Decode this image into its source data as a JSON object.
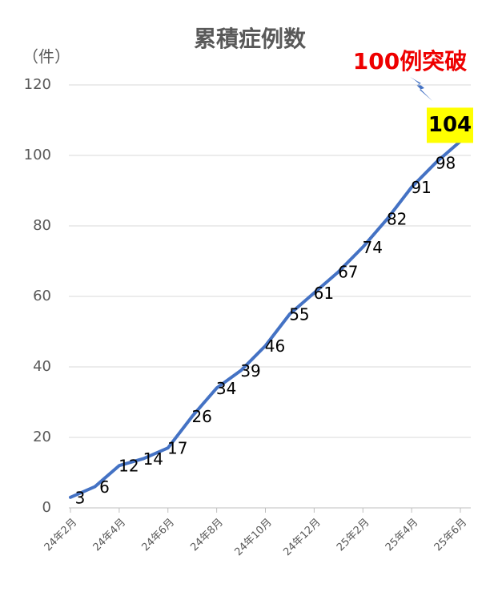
{
  "chart_data": {
    "type": "line",
    "title": "累積症例数",
    "y_label": "（件）",
    "annotation": "100例突破",
    "categories": [
      "24年2月",
      null,
      "24年4月",
      null,
      "24年6月",
      null,
      "24年8月",
      null,
      "24年10月",
      null,
      "24年12月",
      null,
      "25年2月",
      null,
      "25年4月",
      null,
      "25年6月"
    ],
    "series": [
      {
        "name": "累積症例数",
        "color": "#4472c4",
        "values": [
          3,
          6,
          12,
          14,
          17,
          26,
          34,
          39,
          46,
          55,
          61,
          67,
          74,
          82,
          91,
          98,
          104
        ]
      }
    ],
    "ylim": [
      0,
      120
    ],
    "yticks": [
      0,
      20,
      40,
      60,
      80,
      100,
      120
    ],
    "grid": true
  }
}
